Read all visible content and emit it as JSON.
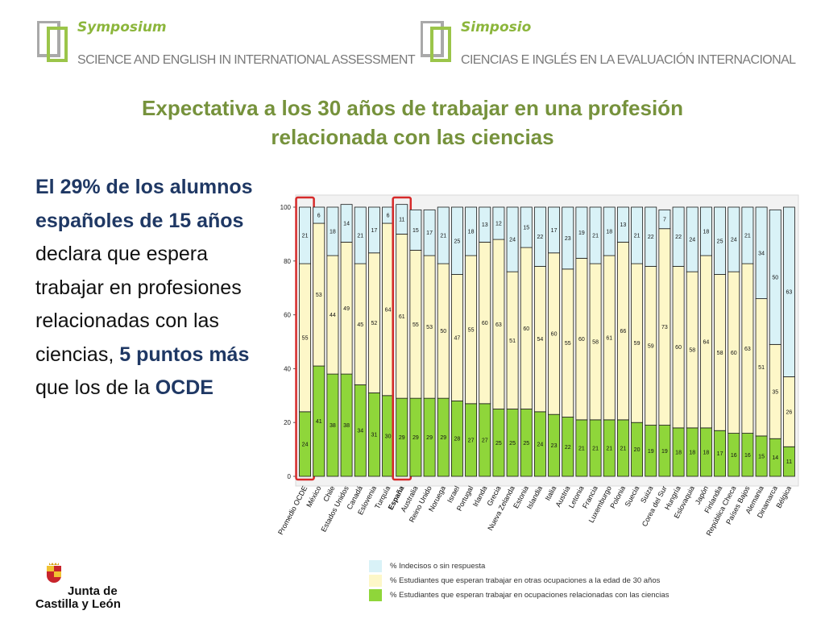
{
  "header": {
    "left": {
      "name": "Symposium",
      "subtitle": "SCIENCE AND ENGLISH IN INTERNATIONAL ASSESSMENT"
    },
    "right": {
      "name": "Simposio",
      "subtitle": "CIENCIAS E INGLÉS EN LA  EVALUACIÓN INTERNACIONAL"
    }
  },
  "slide_title_line1": "Expectativa a los 30 años de trabajar en una profesión",
  "slide_title_line2": "relacionada con las ciencias",
  "paragraph": {
    "part1": "El 29% de los alumnos españoles de 15 años",
    "part2": " declara que espera trabajar en profesiones relacionadas con las ciencias, ",
    "part3": "5 puntos más",
    "part4": " que los de la ",
    "part5": "OCDE"
  },
  "logo": {
    "line1": "Junta de",
    "line2": "Castilla y León"
  },
  "colors": {
    "science": "#8fd63a",
    "other": "#fdf7c8",
    "undecided": "#d9f2f7",
    "highlight": "#d62a2a",
    "title": "#76923c",
    "header_name": "#8cb63c"
  },
  "chart_data": {
    "type": "bar",
    "stacked": true,
    "ylim": [
      0,
      100
    ],
    "yticks": [
      "0",
      "20",
      "40",
      "60",
      "80",
      "100"
    ],
    "categories": [
      "Promedio OCDE",
      "México",
      "Chile",
      "Estados Unidos",
      "Canadá",
      "Eslovenia",
      "Turquía",
      "España",
      "Australia",
      "Reino Unido",
      "Noruega",
      "Israel",
      "Portugal",
      "Irlanda",
      "Grecia",
      "Nueva Zelanda",
      "Estonia",
      "Islandia",
      "Italia",
      "Austria",
      "Letonia",
      "Francia",
      "Luxemburgo",
      "Polonia",
      "Suecia",
      "Suiza",
      "Corea del Sur",
      "Hungría",
      "Eslovaquia",
      "Japón",
      "Finlandia",
      "República Checa",
      "Países Bajos",
      "Alemania",
      "Dinamarca",
      "Bélgica"
    ],
    "highlighted": [
      "Promedio OCDE",
      "España"
    ],
    "series": [
      {
        "name": "% Estudiantes que esperan trabajar en ocupaciones relacionadas con las ciencias",
        "values": [
          24,
          41,
          38,
          38,
          34,
          31,
          30,
          29,
          29,
          29,
          29,
          28,
          27,
          27,
          25,
          25,
          25,
          24,
          23,
          22,
          21,
          21,
          21,
          21,
          20,
          19,
          19,
          18,
          18,
          18,
          17,
          16,
          16,
          15,
          14,
          11
        ]
      },
      {
        "name": "% Estudiantes que esperan trabajar en otras ocupaciones a la edad de 30 años",
        "values": [
          55,
          53,
          44,
          49,
          45,
          52,
          64,
          61,
          55,
          53,
          50,
          47,
          55,
          60,
          63,
          51,
          60,
          54,
          60,
          55,
          60,
          58,
          61,
          66,
          59,
          59,
          73,
          60,
          58,
          64,
          58,
          60,
          63,
          51,
          35,
          26
        ]
      },
      {
        "name": "% Indecisos o sin respuesta",
        "values": [
          21,
          6,
          18,
          14,
          21,
          17,
          6,
          11,
          15,
          17,
          21,
          25,
          18,
          13,
          12,
          24,
          15,
          22,
          17,
          23,
          19,
          21,
          18,
          13,
          21,
          22,
          7,
          22,
          24,
          18,
          25,
          24,
          21,
          34,
          50,
          63
        ]
      }
    ]
  }
}
